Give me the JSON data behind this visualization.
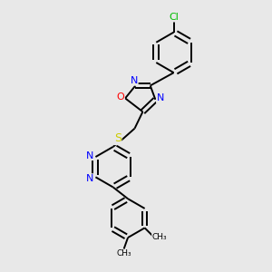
{
  "background_color": "#e8e8e8",
  "bond_color": "#000000",
  "atom_colors": {
    "N": "#0000ff",
    "O": "#ff0000",
    "S": "#cccc00",
    "Cl": "#00bb00",
    "C": "#000000"
  },
  "figsize": [
    3.0,
    3.0
  ],
  "dpi": 100,
  "lw": 1.4,
  "fs": 8.0
}
